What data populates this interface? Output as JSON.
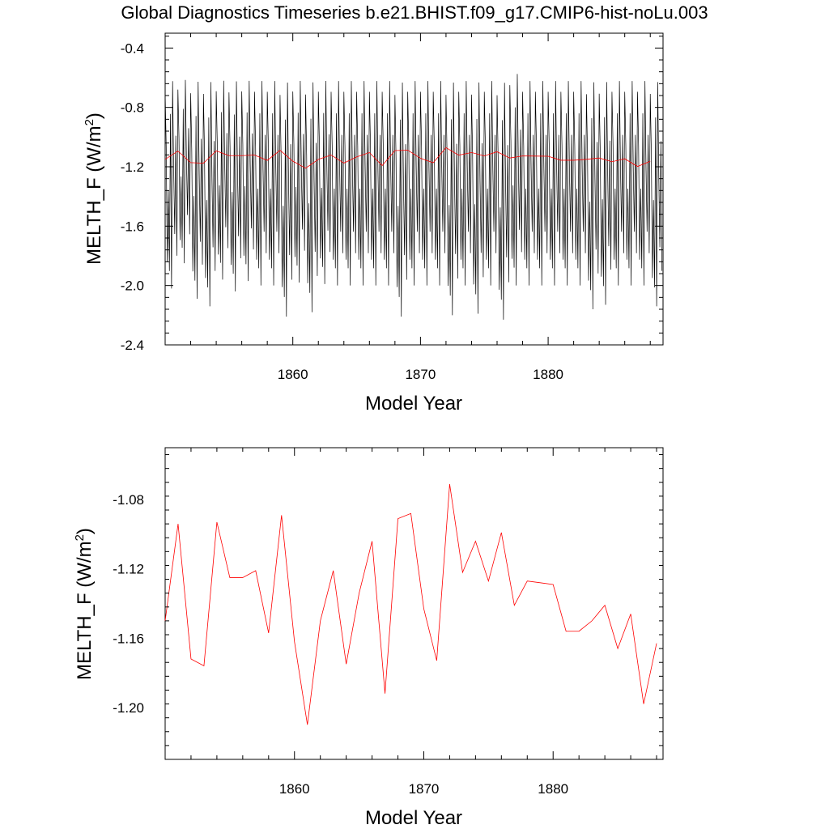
{
  "chart_data": [
    {
      "type": "line",
      "title": "Global Diagnostics Timeseries b.e21.BHIST.f09_g17.CMIP6-hist-noLu.003",
      "xlabel": "Model Year",
      "ylabel_text": "MELTH_F (W/m",
      "ylabel_sup": "2",
      "ylabel_close": ")",
      "xlim": [
        1850,
        1889
      ],
      "ylim": [
        -2.4,
        -0.3
      ],
      "xticks": [
        1860,
        1870,
        1880
      ],
      "xtick_labels": [
        "1860",
        "1870",
        "1880"
      ],
      "yticks": [
        -2.4,
        -2.0,
        -1.6,
        -1.2,
        -0.8,
        -0.4
      ],
      "ytick_labels": [
        "-2.4",
        "-2.0",
        "-1.6",
        "-1.2",
        "-0.8",
        "-0.4"
      ],
      "grid": false,
      "series": [
        {
          "color": "#000000",
          "kind": "monthly",
          "x_start": 1850.0,
          "x_step_months": 1,
          "seasonal_peak": [
            -0.55,
            -0.55,
            -0.55,
            -0.55,
            -0.55,
            -0.55,
            -0.55,
            -0.55,
            -0.55,
            -0.55,
            -0.55,
            -0.55,
            -0.55,
            -0.55,
            -0.55,
            -0.55,
            -0.55,
            -0.55,
            -0.55,
            -0.55,
            -0.55,
            -0.55,
            -0.55,
            -0.55,
            -0.55,
            -0.55,
            -0.55,
            -0.5,
            -0.55,
            -0.55,
            -0.55,
            -0.55,
            -0.55,
            -0.55,
            -0.55,
            -0.55,
            -0.55,
            -0.55,
            -0.55
          ],
          "seasonal_trough": [
            -2.02,
            -1.85,
            -2.09,
            -2.14,
            -1.96,
            -2.04,
            -1.97,
            -2.0,
            -2.0,
            -2.21,
            -1.98,
            -2.18,
            -1.99,
            -2.0,
            -2.0,
            -2.0,
            -2.0,
            -2.0,
            -2.21,
            -2.0,
            -2.0,
            -2.0,
            -2.2,
            -2.0,
            -2.19,
            -2.0,
            -2.23,
            -2.0,
            -2.0,
            -2.0,
            -2.0,
            -2.0,
            -2.0,
            -2.16,
            -2.13,
            -2.0,
            -2.0,
            -2.0,
            -2.14
          ]
        },
        {
          "color": "#ff0000",
          "kind": "annual",
          "x": [
            1850,
            1851,
            1852,
            1853,
            1854,
            1855,
            1856,
            1857,
            1858,
            1859,
            1860,
            1861,
            1862,
            1863,
            1864,
            1865,
            1866,
            1867,
            1868,
            1869,
            1870,
            1871,
            1872,
            1873,
            1874,
            1875,
            1876,
            1877,
            1878,
            1879,
            1880,
            1881,
            1882,
            1883,
            1884,
            1885,
            1886,
            1887,
            1888
          ],
          "values": [
            -1.15,
            -1.094,
            -1.172,
            -1.176,
            -1.093,
            -1.125,
            -1.125,
            -1.121,
            -1.157,
            -1.089,
            -1.162,
            -1.21,
            -1.15,
            -1.121,
            -1.175,
            -1.134,
            -1.104,
            -1.192,
            -1.091,
            -1.088,
            -1.143,
            -1.173,
            -1.071,
            -1.122,
            -1.104,
            -1.127,
            -1.099,
            -1.141,
            -1.127,
            -1.128,
            -1.129,
            -1.156,
            -1.156,
            -1.15,
            -1.141,
            -1.166,
            -1.146,
            -1.198,
            -1.163
          ]
        }
      ]
    },
    {
      "type": "line",
      "title": "",
      "xlabel": "Model Year",
      "ylabel_text": "MELTH_F (W/m",
      "ylabel_sup": "2",
      "ylabel_close": ")",
      "xlim": [
        1850,
        1888.5
      ],
      "ylim": [
        -1.23,
        -1.05
      ],
      "xticks": [
        1860,
        1870,
        1880
      ],
      "xtick_labels": [
        "1860",
        "1870",
        "1880"
      ],
      "yticks": [
        -1.2,
        -1.16,
        -1.12,
        -1.08
      ],
      "ytick_labels": [
        "-1.20",
        "-1.16",
        "-1.12",
        "-1.08"
      ],
      "grid": false,
      "series": [
        {
          "color": "#ff0000",
          "kind": "annual",
          "x": [
            1850,
            1851,
            1852,
            1853,
            1854,
            1855,
            1856,
            1857,
            1858,
            1859,
            1860,
            1861,
            1862,
            1863,
            1864,
            1865,
            1866,
            1867,
            1868,
            1869,
            1870,
            1871,
            1872,
            1873,
            1874,
            1875,
            1876,
            1877,
            1878,
            1879,
            1880,
            1881,
            1882,
            1883,
            1884,
            1885,
            1886,
            1887,
            1888
          ],
          "values": [
            -1.15,
            -1.094,
            -1.172,
            -1.176,
            -1.093,
            -1.125,
            -1.125,
            -1.121,
            -1.157,
            -1.089,
            -1.162,
            -1.21,
            -1.15,
            -1.121,
            -1.175,
            -1.134,
            -1.104,
            -1.192,
            -1.091,
            -1.088,
            -1.143,
            -1.173,
            -1.071,
            -1.122,
            -1.104,
            -1.127,
            -1.099,
            -1.141,
            -1.127,
            -1.128,
            -1.129,
            -1.156,
            -1.156,
            -1.15,
            -1.141,
            -1.166,
            -1.146,
            -1.198,
            -1.163
          ]
        }
      ]
    }
  ]
}
